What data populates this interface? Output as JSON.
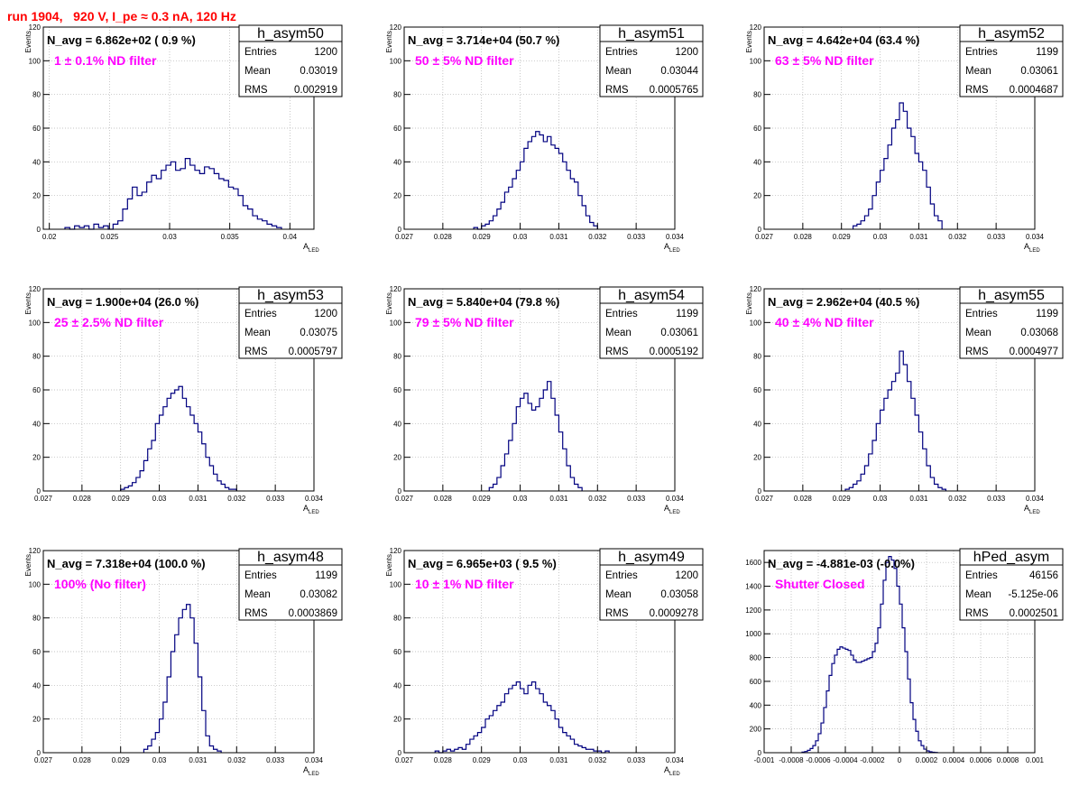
{
  "page_title": "run 1904,   920 V, I_pe ≈ 0.3 nA, 120 Hz",
  "colors": {
    "title": "#ff0000",
    "filter_label": "#ff00ff",
    "histogram_line": "#000080",
    "grid": "#b0b0b0"
  },
  "chart_data": [
    {
      "type": "histogram",
      "name": "h_asym50",
      "header": "N_avg = 6.862e+02 ( 0.9 %)",
      "filter_label": "1 ± 0.1% ND filter",
      "stats": [
        {
          "label": "Entries",
          "value": "1200"
        },
        {
          "label": "Mean",
          "value": "0.03019"
        },
        {
          "label": "RMS",
          "value": "0.002919"
        }
      ],
      "xlabel": "A",
      "xlabel_sub": "LED",
      "ylabel": "Events",
      "xlim": [
        0.0195,
        0.042
      ],
      "ylim": [
        0,
        120
      ],
      "xticks": [
        0.02,
        0.025,
        0.03,
        0.035,
        0.04
      ],
      "xtick_labels": [
        "0.02",
        "0.025",
        "0.03",
        "0.035",
        "0.04"
      ],
      "yticks": [
        0,
        20,
        40,
        60,
        80,
        100,
        120
      ],
      "ytick_labels": [
        "0",
        "20",
        "40",
        "60",
        "80",
        "100",
        "120"
      ],
      "bin_start": 0.0213,
      "bin_width": 0.0004,
      "counts": [
        1,
        0,
        2,
        1,
        2,
        0,
        3,
        1,
        2,
        0,
        3,
        5,
        12,
        18,
        25,
        20,
        22,
        28,
        32,
        30,
        35,
        38,
        40,
        35,
        36,
        42,
        38,
        35,
        33,
        37,
        36,
        33,
        30,
        29,
        25,
        24,
        20,
        14,
        12,
        8,
        6,
        5,
        3,
        2,
        1
      ]
    },
    {
      "type": "histogram",
      "name": "h_asym51",
      "header": "N_avg = 3.714e+04 (50.7 %)",
      "filter_label": "50 ± 5% ND filter",
      "stats": [
        {
          "label": "Entries",
          "value": "1200"
        },
        {
          "label": "Mean",
          "value": "0.03044"
        },
        {
          "label": "RMS",
          "value": "0.0005765"
        }
      ],
      "xlabel": "A",
      "xlabel_sub": "LED",
      "ylabel": "Events",
      "xlim": [
        0.027,
        0.034
      ],
      "ylim": [
        0,
        120
      ],
      "xticks": [
        0.027,
        0.028,
        0.029,
        0.03,
        0.031,
        0.032,
        0.033,
        0.034
      ],
      "xtick_labels": [
        "0.027",
        "0.028",
        "0.029",
        "0.03",
        "0.031",
        "0.032",
        "0.033",
        "0.034"
      ],
      "yticks": [
        0,
        20,
        40,
        60,
        80,
        100,
        120
      ],
      "ytick_labels": [
        "0",
        "20",
        "40",
        "60",
        "80",
        "100",
        "120"
      ],
      "bin_start": 0.0288,
      "bin_width": 0.0001,
      "counts": [
        1,
        0,
        2,
        3,
        5,
        8,
        12,
        16,
        22,
        25,
        30,
        35,
        40,
        48,
        52,
        55,
        58,
        56,
        52,
        55,
        50,
        48,
        45,
        40,
        35,
        30,
        28,
        20,
        14,
        8,
        4,
        2
      ]
    },
    {
      "type": "histogram",
      "name": "h_asym52",
      "header": "N_avg = 4.642e+04 (63.4 %)",
      "filter_label": "63 ± 5% ND filter",
      "stats": [
        {
          "label": "Entries",
          "value": "1199"
        },
        {
          "label": "Mean",
          "value": "0.03061"
        },
        {
          "label": "RMS",
          "value": "0.0004687"
        }
      ],
      "xlabel": "A",
      "xlabel_sub": "LED",
      "ylabel": "Events",
      "xlim": [
        0.027,
        0.034
      ],
      "ylim": [
        0,
        120
      ],
      "xticks": [
        0.027,
        0.028,
        0.029,
        0.03,
        0.031,
        0.032,
        0.033,
        0.034
      ],
      "xtick_labels": [
        "0.027",
        "0.028",
        "0.029",
        "0.03",
        "0.031",
        "0.032",
        "0.033",
        "0.034"
      ],
      "yticks": [
        0,
        20,
        40,
        60,
        80,
        100,
        120
      ],
      "ytick_labels": [
        "0",
        "20",
        "40",
        "60",
        "80",
        "100",
        "120"
      ],
      "bin_start": 0.0293,
      "bin_width": 0.0001,
      "counts": [
        2,
        3,
        5,
        8,
        12,
        20,
        28,
        35,
        42,
        50,
        60,
        65,
        75,
        70,
        60,
        55,
        45,
        40,
        35,
        25,
        15,
        8,
        5
      ]
    },
    {
      "type": "histogram",
      "name": "h_asym53",
      "header": "N_avg = 1.900e+04 (26.0 %)",
      "filter_label": "25 ± 2.5% ND filter",
      "stats": [
        {
          "label": "Entries",
          "value": "1200"
        },
        {
          "label": "Mean",
          "value": "0.03075"
        },
        {
          "label": "RMS",
          "value": "0.0005797"
        }
      ],
      "xlabel": "A",
      "xlabel_sub": "LED",
      "ylabel": "Events",
      "xlim": [
        0.027,
        0.034
      ],
      "ylim": [
        0,
        120
      ],
      "xticks": [
        0.027,
        0.028,
        0.029,
        0.03,
        0.031,
        0.032,
        0.033,
        0.034
      ],
      "xtick_labels": [
        "0.027",
        "0.028",
        "0.029",
        "0.03",
        "0.031",
        "0.032",
        "0.033",
        "0.034"
      ],
      "yticks": [
        0,
        20,
        40,
        60,
        80,
        100,
        120
      ],
      "ytick_labels": [
        "0",
        "20",
        "40",
        "60",
        "80",
        "100",
        "120"
      ],
      "bin_start": 0.029,
      "bin_width": 0.0001,
      "counts": [
        1,
        2,
        3,
        5,
        8,
        12,
        18,
        25,
        30,
        40,
        45,
        50,
        55,
        58,
        60,
        62,
        55,
        50,
        45,
        40,
        35,
        28,
        20,
        15,
        10,
        6,
        4,
        2,
        1,
        1
      ]
    },
    {
      "type": "histogram",
      "name": "h_asym54",
      "header": "N_avg = 5.840e+04 (79.8 %)",
      "filter_label": "79 ± 5% ND filter",
      "stats": [
        {
          "label": "Entries",
          "value": "1199"
        },
        {
          "label": "Mean",
          "value": "0.03061"
        },
        {
          "label": "RMS",
          "value": "0.0005192"
        }
      ],
      "xlabel": "A",
      "xlabel_sub": "LED",
      "ylabel": "Events",
      "xlim": [
        0.027,
        0.034
      ],
      "ylim": [
        0,
        120
      ],
      "xticks": [
        0.027,
        0.028,
        0.029,
        0.03,
        0.031,
        0.032,
        0.033,
        0.034
      ],
      "xtick_labels": [
        "0.027",
        "0.028",
        "0.029",
        "0.03",
        "0.031",
        "0.032",
        "0.033",
        "0.034"
      ],
      "yticks": [
        0,
        20,
        40,
        60,
        80,
        100,
        120
      ],
      "ytick_labels": [
        "0",
        "20",
        "40",
        "60",
        "80",
        "100",
        "120"
      ],
      "bin_start": 0.0292,
      "bin_width": 0.0001,
      "counts": [
        2,
        4,
        8,
        15,
        22,
        30,
        40,
        50,
        55,
        58,
        52,
        48,
        50,
        55,
        60,
        65,
        55,
        45,
        35,
        25,
        15,
        8,
        4,
        2
      ]
    },
    {
      "type": "histogram",
      "name": "h_asym55",
      "header": "N_avg = 2.962e+04 (40.5 %)",
      "filter_label": "40 ± 4% ND filter",
      "stats": [
        {
          "label": "Entries",
          "value": "1199"
        },
        {
          "label": "Mean",
          "value": "0.03068"
        },
        {
          "label": "RMS",
          "value": "0.0004977"
        }
      ],
      "xlabel": "A",
      "xlabel_sub": "LED",
      "ylabel": "Events",
      "xlim": [
        0.027,
        0.034
      ],
      "ylim": [
        0,
        120
      ],
      "xticks": [
        0.027,
        0.028,
        0.029,
        0.03,
        0.031,
        0.032,
        0.033,
        0.034
      ],
      "xtick_labels": [
        "0.027",
        "0.028",
        "0.029",
        "0.03",
        "0.031",
        "0.032",
        "0.033",
        "0.034"
      ],
      "yticks": [
        0,
        20,
        40,
        60,
        80,
        100,
        120
      ],
      "ytick_labels": [
        "0",
        "20",
        "40",
        "60",
        "80",
        "100",
        "120"
      ],
      "bin_start": 0.0291,
      "bin_width": 0.0001,
      "counts": [
        1,
        2,
        4,
        6,
        10,
        15,
        22,
        30,
        40,
        48,
        55,
        60,
        65,
        70,
        83,
        75,
        65,
        55,
        45,
        35,
        25,
        15,
        8,
        4,
        2,
        1
      ]
    },
    {
      "type": "histogram",
      "name": "h_asym48",
      "header": "N_avg = 7.318e+04 (100.0 %)",
      "filter_label": "100% (No filter)",
      "stats": [
        {
          "label": "Entries",
          "value": "1199"
        },
        {
          "label": "Mean",
          "value": "0.03082"
        },
        {
          "label": "RMS",
          "value": "0.0003869"
        }
      ],
      "xlabel": "A",
      "xlabel_sub": "LED",
      "ylabel": "Events",
      "xlim": [
        0.027,
        0.034
      ],
      "ylim": [
        0,
        120
      ],
      "xticks": [
        0.027,
        0.028,
        0.029,
        0.03,
        0.031,
        0.032,
        0.033,
        0.034
      ],
      "xtick_labels": [
        "0.027",
        "0.028",
        "0.029",
        "0.03",
        "0.031",
        "0.032",
        "0.033",
        "0.034"
      ],
      "yticks": [
        0,
        20,
        40,
        60,
        80,
        100,
        120
      ],
      "ytick_labels": [
        "0",
        "20",
        "40",
        "60",
        "80",
        "100",
        "120"
      ],
      "bin_start": 0.0296,
      "bin_width": 0.0001,
      "counts": [
        2,
        4,
        8,
        12,
        20,
        30,
        45,
        60,
        70,
        80,
        85,
        88,
        80,
        65,
        45,
        25,
        10,
        4,
        2,
        1
      ]
    },
    {
      "type": "histogram",
      "name": "h_asym49",
      "header": "N_avg = 6.965e+03 ( 9.5 %)",
      "filter_label": "10 ± 1% ND filter",
      "stats": [
        {
          "label": "Entries",
          "value": "1200"
        },
        {
          "label": "Mean",
          "value": "0.03058"
        },
        {
          "label": "RMS",
          "value": "0.0009278"
        }
      ],
      "xlabel": "A",
      "xlabel_sub": "LED",
      "ylabel": "Events",
      "xlim": [
        0.027,
        0.034
      ],
      "ylim": [
        0,
        120
      ],
      "xticks": [
        0.027,
        0.028,
        0.029,
        0.03,
        0.031,
        0.032,
        0.033,
        0.034
      ],
      "xtick_labels": [
        "0.027",
        "0.028",
        "0.029",
        "0.03",
        "0.031",
        "0.032",
        "0.033",
        "0.034"
      ],
      "yticks": [
        0,
        20,
        40,
        60,
        80,
        100,
        120
      ],
      "ytick_labels": [
        "0",
        "20",
        "40",
        "60",
        "80",
        "100",
        "120"
      ],
      "bin_start": 0.0278,
      "bin_width": 0.0001,
      "counts": [
        1,
        0,
        1,
        2,
        1,
        2,
        3,
        2,
        5,
        8,
        10,
        12,
        15,
        20,
        22,
        25,
        28,
        30,
        35,
        38,
        40,
        42,
        38,
        35,
        40,
        42,
        38,
        35,
        30,
        28,
        25,
        20,
        15,
        12,
        10,
        8,
        5,
        4,
        3,
        2,
        2,
        1,
        1,
        0,
        1
      ]
    },
    {
      "type": "histogram",
      "name": "hPed_asym",
      "header": "N_avg = -4.881e-03 (-0.0%)",
      "filter_label": "Shutter Closed",
      "stats": [
        {
          "label": "Entries",
          "value": "46156"
        },
        {
          "label": "Mean",
          "value": "-5.125e-06"
        },
        {
          "label": "RMS",
          "value": "0.0002501"
        }
      ],
      "xlabel": "",
      "xlabel_sub": "",
      "ylabel": "",
      "xlim": [
        -0.001,
        0.001
      ],
      "ylim": [
        0,
        1700
      ],
      "xticks": [
        -0.001,
        -0.0008,
        -0.0006,
        -0.0004,
        -0.0002,
        0,
        0.0002,
        0.0004,
        0.0006,
        0.0008,
        0.001
      ],
      "xtick_labels": [
        "-0.001",
        "-0.0008",
        "-0.0006",
        "-0.0004",
        "-0.0002",
        "0",
        "0.0002",
        "0.0004",
        "0.0006",
        "0.0008",
        "0.001"
      ],
      "yticks": [
        0,
        200,
        400,
        600,
        800,
        1000,
        1200,
        1400,
        1600
      ],
      "ytick_labels": [
        "0",
        "200",
        "400",
        "600",
        "800",
        "1000",
        "1200",
        "1400",
        "1600"
      ],
      "bin_start": -0.00072,
      "bin_width": 2e-05,
      "counts": [
        5,
        10,
        20,
        35,
        60,
        100,
        160,
        250,
        380,
        520,
        650,
        750,
        820,
        870,
        890,
        880,
        870,
        860,
        820,
        780,
        760,
        760,
        770,
        780,
        790,
        800,
        850,
        920,
        1050,
        1250,
        1450,
        1600,
        1650,
        1620,
        1550,
        1400,
        1250,
        1050,
        850,
        620,
        420,
        280,
        180,
        100,
        60,
        30,
        15,
        8,
        4,
        2
      ]
    }
  ]
}
